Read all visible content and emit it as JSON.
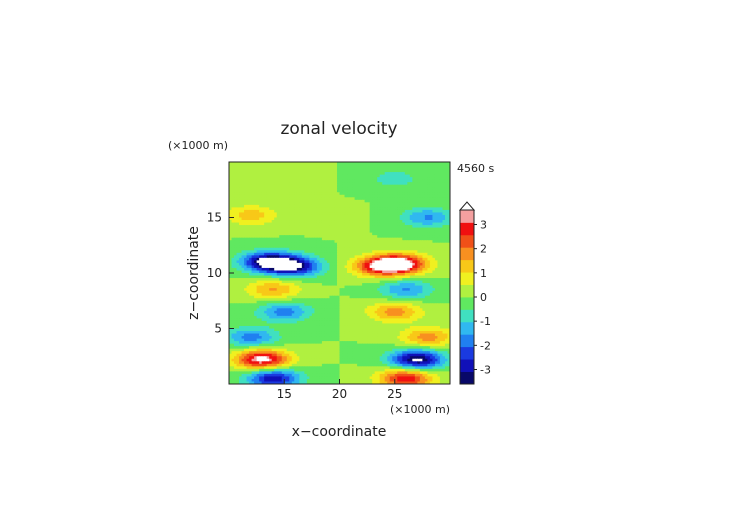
{
  "chart_data": {
    "type": "heatmap",
    "title": "zonal velocity",
    "xlabel": "x−coordinate",
    "ylabel": "z−coordinate",
    "x_unit": "(×1000 m)",
    "y_unit": "(×1000 m)",
    "time_label": "4560 s",
    "xlim": [
      10,
      30
    ],
    "ylim": [
      0,
      20
    ],
    "x_ticks": [
      15,
      20,
      25
    ],
    "y_ticks": [
      5,
      10,
      15
    ],
    "colorbar": {
      "ticks": [
        3,
        2,
        1,
        0,
        -1,
        -2,
        -3
      ],
      "range": [
        -3.6,
        3.6
      ],
      "levels": 14,
      "colors": [
        "#080868",
        "#1010b8",
        "#1a3ae0",
        "#2080f0",
        "#30b8f0",
        "#40e0c0",
        "#60e860",
        "#b0f040",
        "#f0f020",
        "#f8c818",
        "#f89020",
        "#f05018",
        "#f01010",
        "#f4a0a0"
      ],
      "arrow_color": "#ffffff"
    },
    "features": [
      {
        "x": 13.5,
        "z": 11.0,
        "value": -3.6
      },
      {
        "x": 16.0,
        "z": 10.6,
        "value": -3.0
      },
      {
        "x": 25.5,
        "z": 10.8,
        "value": 3.6
      },
      {
        "x": 23.5,
        "z": 10.6,
        "value": 2.5
      },
      {
        "x": 13.0,
        "z": 2.2,
        "value": 3.6
      },
      {
        "x": 27.0,
        "z": 2.2,
        "value": -3.6
      },
      {
        "x": 12.0,
        "z": 15.2,
        "value": 1.3
      },
      {
        "x": 28.0,
        "z": 15.0,
        "value": -1.6
      },
      {
        "x": 15.0,
        "z": 18.5,
        "value": 0.5
      },
      {
        "x": 25.0,
        "z": 18.5,
        "value": -0.8
      },
      {
        "x": 15.0,
        "z": 6.5,
        "value": -1.8
      },
      {
        "x": 25.0,
        "z": 6.5,
        "value": 1.8
      },
      {
        "x": 14.0,
        "z": 8.5,
        "value": 1.6
      },
      {
        "x": 26.0,
        "z": 8.5,
        "value": -1.6
      },
      {
        "x": 12.0,
        "z": 4.2,
        "value": -1.8
      },
      {
        "x": 28.0,
        "z": 4.2,
        "value": 1.8
      },
      {
        "x": 14.0,
        "z": 0.5,
        "value": -3.0
      },
      {
        "x": 26.0,
        "z": 0.5,
        "value": 3.0
      },
      {
        "x": 19.5,
        "z": 15.0,
        "value": 0.1
      }
    ]
  }
}
